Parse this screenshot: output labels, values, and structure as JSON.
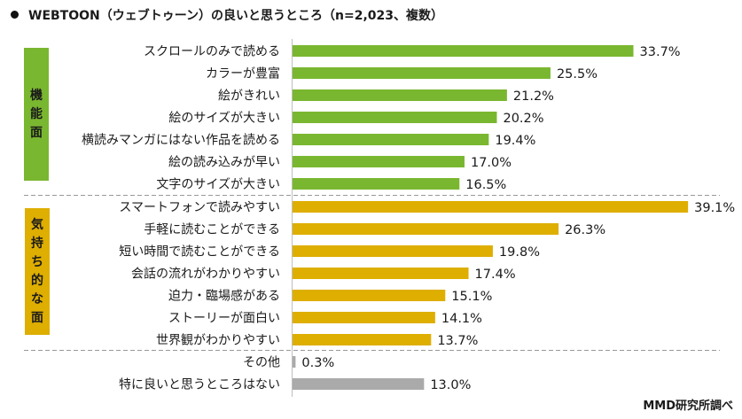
{
  "title": "WEBTOON（ウェブトゥーン）の良いと思うところ（n=2,023、複数）",
  "source": "MMD研究所調べ",
  "colors": {
    "functional": "#7AB730",
    "emotional": "#DEAE00",
    "other": "#AAAAAA",
    "axis": "#BFBFBF",
    "divider": "#999999"
  },
  "groups": [
    {
      "key": "functional",
      "label_chars": [
        "機",
        "能",
        "面"
      ],
      "label": "機能面"
    },
    {
      "key": "emotional",
      "label_chars": [
        "気",
        "持",
        "ち",
        "的",
        "な",
        "面"
      ],
      "label": "気持ち的な面"
    },
    {
      "key": "other",
      "label_chars": [],
      "label": ""
    }
  ],
  "chart_data": {
    "type": "bar",
    "orientation": "horizontal",
    "title": "WEBTOON（ウェブトゥーン）の良いと思うところ（n=2,023、複数）",
    "xlabel": "",
    "ylabel": "",
    "unit": "%",
    "xlim": [
      0,
      40
    ],
    "grid": false,
    "categories": [
      "スクロールのみで読める",
      "カラーが豊富",
      "絵がきれい",
      "絵のサイズが大きい",
      "横読みマンガにはない作品を読める",
      "絵の読み込みが早い",
      "文字のサイズが大きい",
      "スマートフォンで読みやすい",
      "手軽に読むことができる",
      "短い時間で読むことができる",
      "会話の流れがわかりやすい",
      "迫力・臨場感がある",
      "ストーリーが面白い",
      "世界観がわかりやすい",
      "その他",
      "特に良いと思うところはない"
    ],
    "values": [
      33.7,
      25.5,
      21.2,
      20.2,
      19.4,
      17.0,
      16.5,
      39.1,
      26.3,
      19.8,
      17.4,
      15.1,
      14.1,
      13.7,
      0.3,
      13.0
    ],
    "value_labels": [
      "33.7%",
      "25.5%",
      "21.2%",
      "20.2%",
      "19.4%",
      "17.0%",
      "16.5%",
      "39.1%",
      "26.3%",
      "19.8%",
      "17.4%",
      "15.1%",
      "14.1%",
      "13.7%",
      "0.3%",
      "13.0%"
    ],
    "group_of": [
      "functional",
      "functional",
      "functional",
      "functional",
      "functional",
      "functional",
      "functional",
      "emotional",
      "emotional",
      "emotional",
      "emotional",
      "emotional",
      "emotional",
      "emotional",
      "other",
      "other"
    ]
  }
}
